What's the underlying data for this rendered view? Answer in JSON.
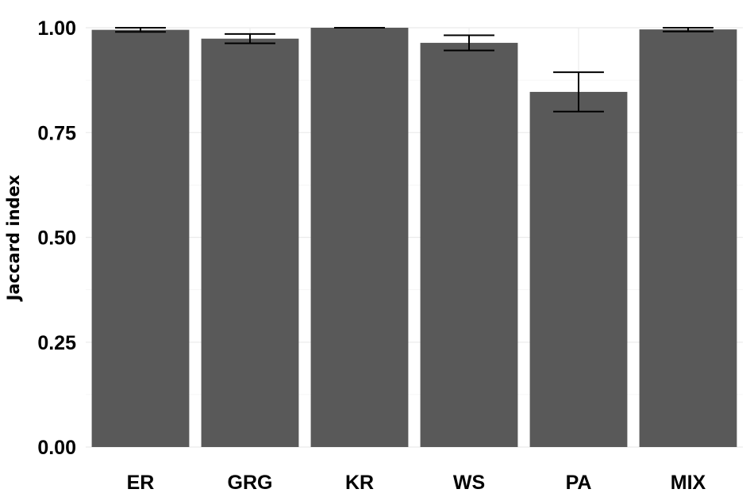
{
  "chart_data": {
    "type": "bar",
    "title": "",
    "xlabel": "",
    "ylabel": "Jaccard index",
    "categories": [
      "ER",
      "GRG",
      "KR",
      "WS",
      "PA",
      "MIX"
    ],
    "values": [
      0.995,
      0.974,
      1.0,
      0.964,
      0.847,
      0.996
    ],
    "error_low": [
      0.99,
      0.963,
      1.0,
      0.946,
      0.8,
      0.991
    ],
    "error_high": [
      1.0,
      0.985,
      1.0,
      0.982,
      0.894,
      1.0
    ],
    "ylim": [
      0,
      1.0
    ],
    "yticks": [
      0.0,
      0.25,
      0.5,
      0.75,
      1.0
    ],
    "ytick_labels": [
      "0.00",
      "0.25",
      "0.50",
      "0.75",
      "1.00"
    ],
    "grid": true,
    "bar_color": "#595959",
    "errorbar_color": "#000000"
  }
}
